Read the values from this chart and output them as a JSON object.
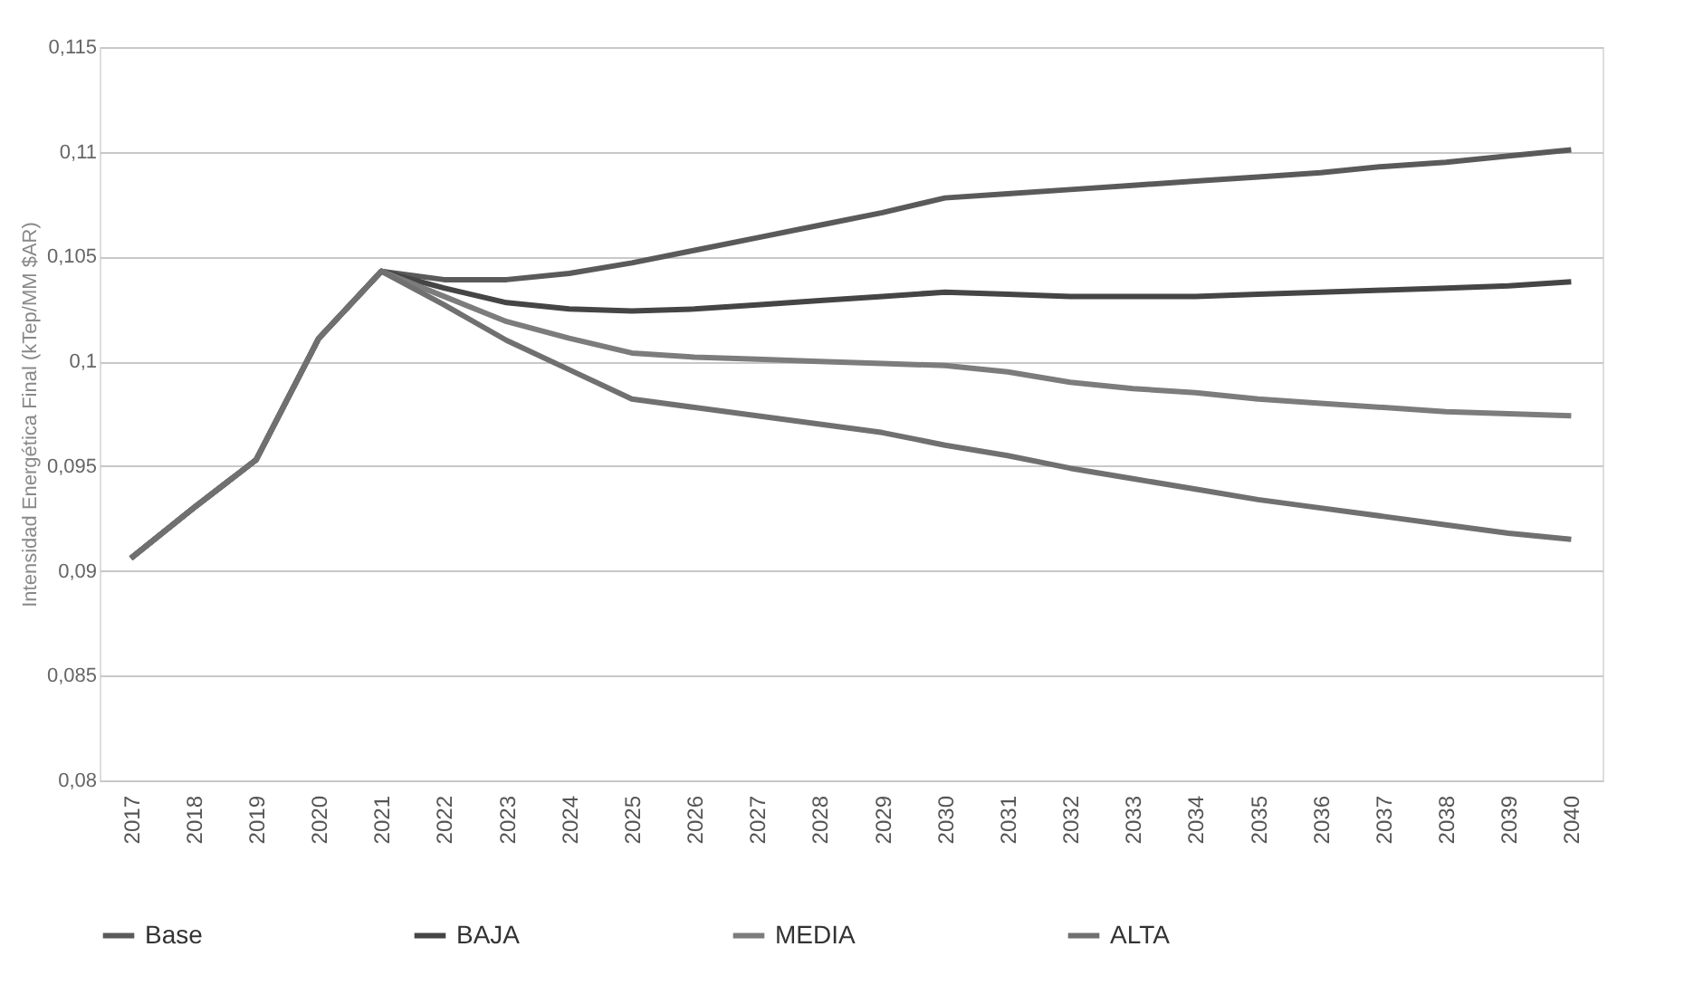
{
  "chart_data": {
    "type": "line",
    "ylabel": "Intensidad Energética Final (kTep/MM $AR)",
    "categories": [
      "2017",
      "2018",
      "2019",
      "2020",
      "2021",
      "2022",
      "2023",
      "2024",
      "2025",
      "2026",
      "2027",
      "2028",
      "2029",
      "2030",
      "2031",
      "2032",
      "2033",
      "2034",
      "2035",
      "2036",
      "2037",
      "2038",
      "2039",
      "2040"
    ],
    "series": [
      {
        "name": "Base",
        "color": "#5a5a5a",
        "values": [
          0.0906,
          0.093,
          0.0953,
          0.1011,
          0.1043,
          0.1039,
          0.1039,
          0.1042,
          0.1047,
          0.1053,
          0.1059,
          0.1065,
          0.1071,
          0.1078,
          0.108,
          0.1082,
          0.1084,
          0.1086,
          0.1088,
          0.109,
          0.1093,
          0.1095,
          0.1098,
          0.1101
        ]
      },
      {
        "name": "BAJA",
        "color": "#454545",
        "values": [
          0.0906,
          0.093,
          0.0953,
          0.1011,
          0.1043,
          0.1035,
          0.1028,
          0.1025,
          0.1024,
          0.1025,
          0.1027,
          0.1029,
          0.1031,
          0.1033,
          0.1032,
          0.1031,
          0.1031,
          0.1031,
          0.1032,
          0.1033,
          0.1034,
          0.1035,
          0.1036,
          0.1038
        ]
      },
      {
        "name": "MEDIA",
        "color": "#7c7c7c",
        "values": [
          0.0906,
          0.093,
          0.0953,
          0.1011,
          0.1043,
          0.1031,
          0.1019,
          0.1011,
          0.1004,
          0.1002,
          0.1001,
          0.1,
          0.0999,
          0.0998,
          0.0995,
          0.099,
          0.0987,
          0.0985,
          0.0982,
          0.098,
          0.0978,
          0.0976,
          0.0975,
          0.0974
        ]
      },
      {
        "name": "ALTA",
        "color": "#707070",
        "values": [
          0.0906,
          0.093,
          0.0953,
          0.1011,
          0.1043,
          0.1027,
          0.101,
          0.0996,
          0.0982,
          0.0978,
          0.0974,
          0.097,
          0.0966,
          0.096,
          0.0955,
          0.0949,
          0.0944,
          0.0939,
          0.0934,
          0.093,
          0.0926,
          0.0922,
          0.0918,
          0.0915
        ]
      }
    ],
    "ylim": [
      0.08,
      0.115
    ],
    "yticks": [
      {
        "value": 0.08,
        "label": "0,08"
      },
      {
        "value": 0.085,
        "label": "0,085"
      },
      {
        "value": 0.09,
        "label": "0,09"
      },
      {
        "value": 0.095,
        "label": "0,095"
      },
      {
        "value": 0.1,
        "label": "0,1"
      },
      {
        "value": 0.105,
        "label": "0,105"
      },
      {
        "value": 0.11,
        "label": "0,11"
      },
      {
        "value": 0.115,
        "label": "0,115"
      }
    ],
    "grid": "y",
    "legend": "bottom left",
    "marker": "none",
    "line_style": "solid"
  }
}
